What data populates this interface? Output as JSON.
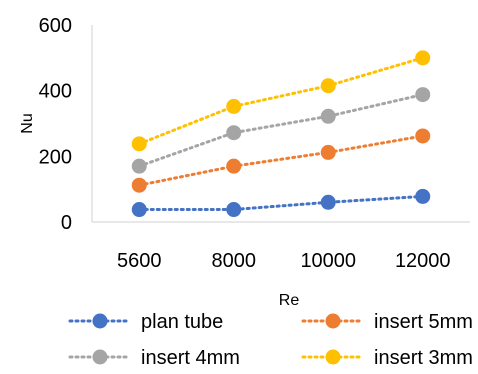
{
  "chart_data": {
    "type": "line",
    "title": "",
    "xlabel": "Re",
    "ylabel": "Nu",
    "categories": [
      "5600",
      "8000",
      "10000",
      "12000"
    ],
    "ylim": [
      0,
      600
    ],
    "yticks": [
      0,
      200,
      400,
      600
    ],
    "grid": "horizontal-none",
    "line_style": "dotted",
    "legend_position": "bottom",
    "series": [
      {
        "name": "plan tube",
        "color": "#4472C4",
        "values": [
          38,
          38,
          60,
          78
        ]
      },
      {
        "name": "insert 5mm",
        "color": "#ED7D31",
        "values": [
          112,
          170,
          212,
          262
        ]
      },
      {
        "name": "insert 4mm",
        "color": "#A5A5A5",
        "values": [
          170,
          272,
          322,
          388
        ]
      },
      {
        "name": "insert 3mm",
        "color": "#FFC000",
        "values": [
          238,
          352,
          415,
          500
        ]
      }
    ]
  }
}
